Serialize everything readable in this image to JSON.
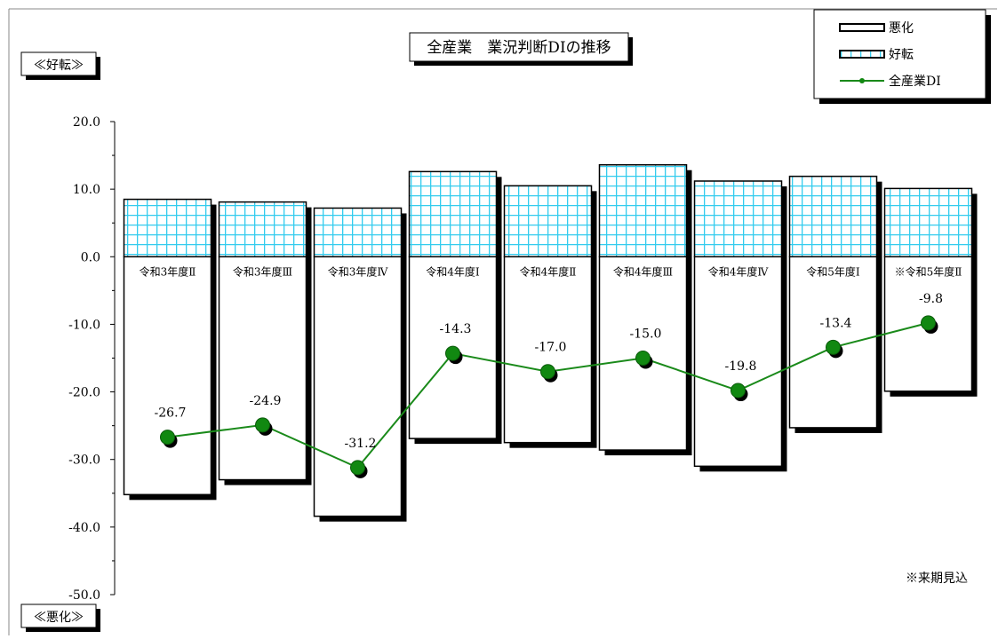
{
  "chart_data": {
    "type": "bar",
    "title": "全産業　業況判断DIの推移",
    "ylim": [
      -50,
      20
    ],
    "yticks": [
      20,
      10,
      0,
      -10,
      -20,
      -30,
      -40,
      -50
    ],
    "ytick_labels": [
      "20.0",
      "10.0",
      "0.0",
      "-10.0",
      "-20.0",
      "-30.0",
      "-40.0",
      "-50.0"
    ],
    "categories": [
      "令和3年度Ⅱ",
      "令和3年度Ⅲ",
      "令和3年度Ⅳ",
      "令和4年度Ⅰ",
      "令和4年度Ⅱ",
      "令和4年度Ⅲ",
      "令和4年度Ⅳ",
      "令和5年度Ⅰ",
      "※令和5年度Ⅱ"
    ],
    "series": [
      {
        "name": "悪化",
        "values": [
          -35.2,
          -33.0,
          -38.4,
          -26.9,
          -27.5,
          -28.6,
          -31.0,
          -25.3,
          -19.9
        ]
      },
      {
        "name": "好転",
        "values": [
          8.5,
          8.1,
          7.2,
          12.6,
          10.5,
          13.6,
          11.2,
          11.9,
          10.1
        ]
      },
      {
        "name": "全産業DI",
        "values": [
          -26.7,
          -24.9,
          -31.2,
          -14.3,
          -17.0,
          -15.0,
          -19.8,
          -13.4,
          -9.8
        ]
      }
    ],
    "di_labels": [
      "-26.7",
      "-24.9",
      "-31.2",
      "-14.3",
      "-17.0",
      "-15.0",
      "-19.8",
      "-13.4",
      "-9.8"
    ],
    "legend_position": "top-right",
    "upper_axis_label": "≪好転≫",
    "lower_axis_label": "≪悪化≫",
    "note": "※来期見込",
    "colors": {
      "grid_pattern": "#33ccee",
      "di_line": "#1a8a1a",
      "di_marker": "#118811",
      "bar_fill": "#ffffff",
      "shadow": "#000000"
    }
  }
}
